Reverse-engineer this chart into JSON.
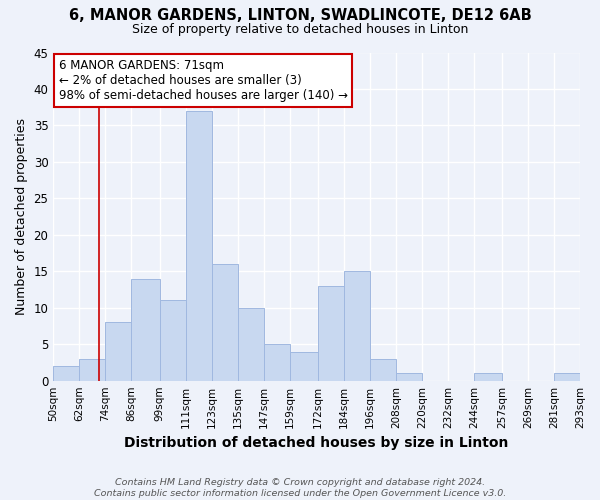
{
  "title": "6, MANOR GARDENS, LINTON, SWADLINCOTE, DE12 6AB",
  "subtitle": "Size of property relative to detached houses in Linton",
  "xlabel": "Distribution of detached houses by size in Linton",
  "ylabel": "Number of detached properties",
  "bar_color": "#c8d8f0",
  "bar_edge_color": "#a0b8e0",
  "bins": [
    50,
    62,
    74,
    86,
    99,
    111,
    123,
    135,
    147,
    159,
    172,
    184,
    196,
    208,
    220,
    232,
    244,
    257,
    269,
    281,
    293
  ],
  "counts": [
    2,
    3,
    8,
    14,
    11,
    37,
    16,
    10,
    5,
    4,
    13,
    15,
    3,
    1,
    0,
    0,
    1,
    0,
    0,
    1
  ],
  "tick_labels": [
    "50sqm",
    "62sqm",
    "74sqm",
    "86sqm",
    "99sqm",
    "111sqm",
    "123sqm",
    "135sqm",
    "147sqm",
    "159sqm",
    "172sqm",
    "184sqm",
    "196sqm",
    "208sqm",
    "220sqm",
    "232sqm",
    "244sqm",
    "257sqm",
    "269sqm",
    "281sqm",
    "293sqm"
  ],
  "ylim": [
    0,
    45
  ],
  "yticks": [
    0,
    5,
    10,
    15,
    20,
    25,
    30,
    35,
    40,
    45
  ],
  "property_line_x": 71,
  "property_line_color": "#cc0000",
  "annotation_title": "6 MANOR GARDENS: 71sqm",
  "annotation_line1": "← 2% of detached houses are smaller (3)",
  "annotation_line2": "98% of semi-detached houses are larger (140) →",
  "annotation_box_color": "#ffffff",
  "annotation_box_edge": "#cc0000",
  "footer_line1": "Contains HM Land Registry data © Crown copyright and database right 2024.",
  "footer_line2": "Contains public sector information licensed under the Open Government Licence v3.0.",
  "background_color": "#eef2fa",
  "grid_color": "#ffffff"
}
